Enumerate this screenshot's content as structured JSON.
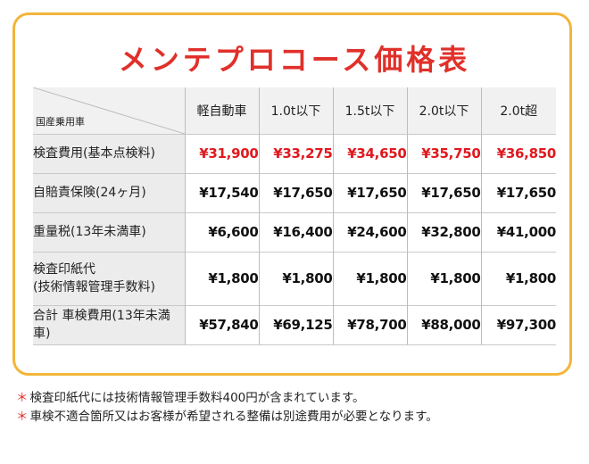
{
  "title": "メンテプロコース価格表",
  "corner_label": "国産乗用車",
  "columns": [
    "軽自動車",
    "1.0t以下",
    "1.5t以下",
    "2.0t以下",
    "2.0t超"
  ],
  "rows": [
    {
      "label_lines": [
        "検査費用(基本点検料)"
      ],
      "values": [
        "¥31,900",
        "¥33,275",
        "¥34,650",
        "¥35,750",
        "¥36,850"
      ],
      "highlight": true
    },
    {
      "label_lines": [
        "自賠責保険(24ヶ月)"
      ],
      "values": [
        "¥17,540",
        "¥17,650",
        "¥17,650",
        "¥17,650",
        "¥17,650"
      ],
      "highlight": false
    },
    {
      "label_lines": [
        "重量税(13年未満車)"
      ],
      "values": [
        "¥6,600",
        "¥16,400",
        "¥24,600",
        "¥32,800",
        "¥41,000"
      ],
      "highlight": false
    },
    {
      "label_lines": [
        "検査印紙代",
        "(技術情報管理手数料)"
      ],
      "values": [
        "¥1,800",
        "¥1,800",
        "¥1,800",
        "¥1,800",
        "¥1,800"
      ],
      "highlight": false
    },
    {
      "label_lines": [
        "合計 車検費用(13年未満車)"
      ],
      "values": [
        "¥57,840",
        "¥69,125",
        "¥78,700",
        "¥88,000",
        "¥97,300"
      ],
      "highlight": false
    }
  ],
  "notes": [
    "検査印紙代には技術情報管理手数料400円が含まれています。",
    "車検不適合箇所又はお客様が希望される整備は別途費用が必要となります。"
  ],
  "colors": {
    "accent": "#e0302a",
    "border": "#f3b53a",
    "price_red": "#e0191f"
  }
}
